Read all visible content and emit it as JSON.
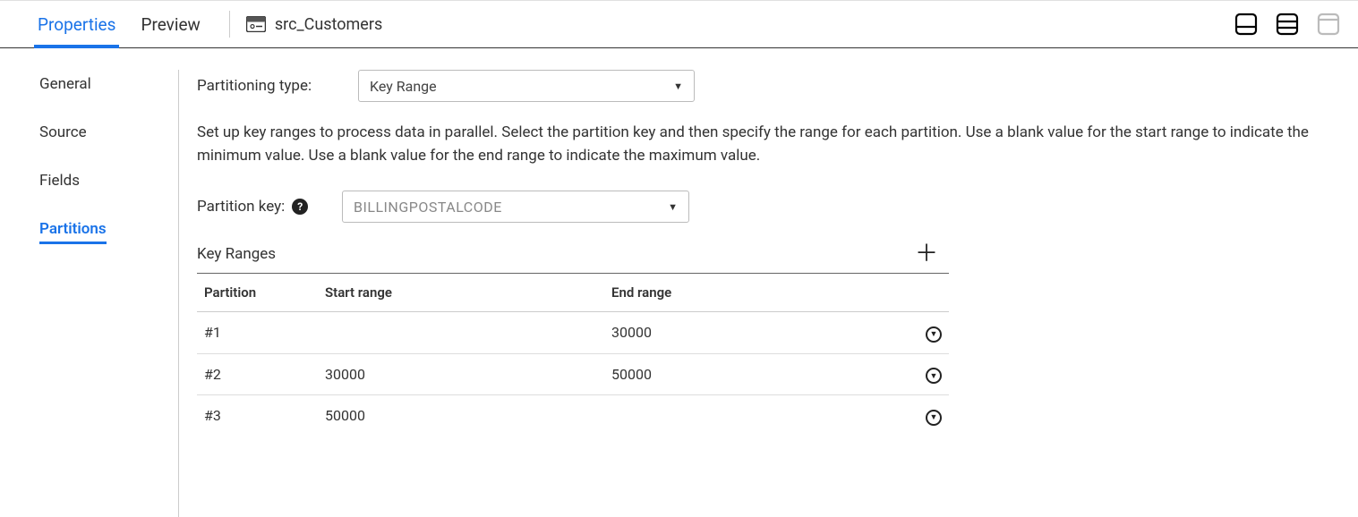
{
  "top": {
    "tabs": [
      "Properties",
      "Preview"
    ],
    "active_tab": 0,
    "source_name": "src_Customers"
  },
  "sidebar": {
    "items": [
      "General",
      "Source",
      "Fields",
      "Partitions"
    ],
    "active_index": 3
  },
  "content": {
    "partitioning_type_label": "Partitioning type:",
    "partitioning_type_value": "Key Range",
    "description": "Set up key ranges to process data in parallel. Select the partition key and then specify the range for each partition. Use a blank value for the start range to indicate the minimum value. Use a blank value for the end range to indicate the maximum value.",
    "partition_key_label": "Partition key:",
    "partition_key_value": "BILLINGPOSTALCODE",
    "ranges_title": "Key Ranges",
    "columns": {
      "partition": "Partition",
      "start": "Start range",
      "end": "End range"
    },
    "rows": [
      {
        "partition": "#1",
        "start": "",
        "end": "30000"
      },
      {
        "partition": "#2",
        "start": "30000",
        "end": "50000"
      },
      {
        "partition": "#3",
        "start": "50000",
        "end": ""
      }
    ]
  }
}
